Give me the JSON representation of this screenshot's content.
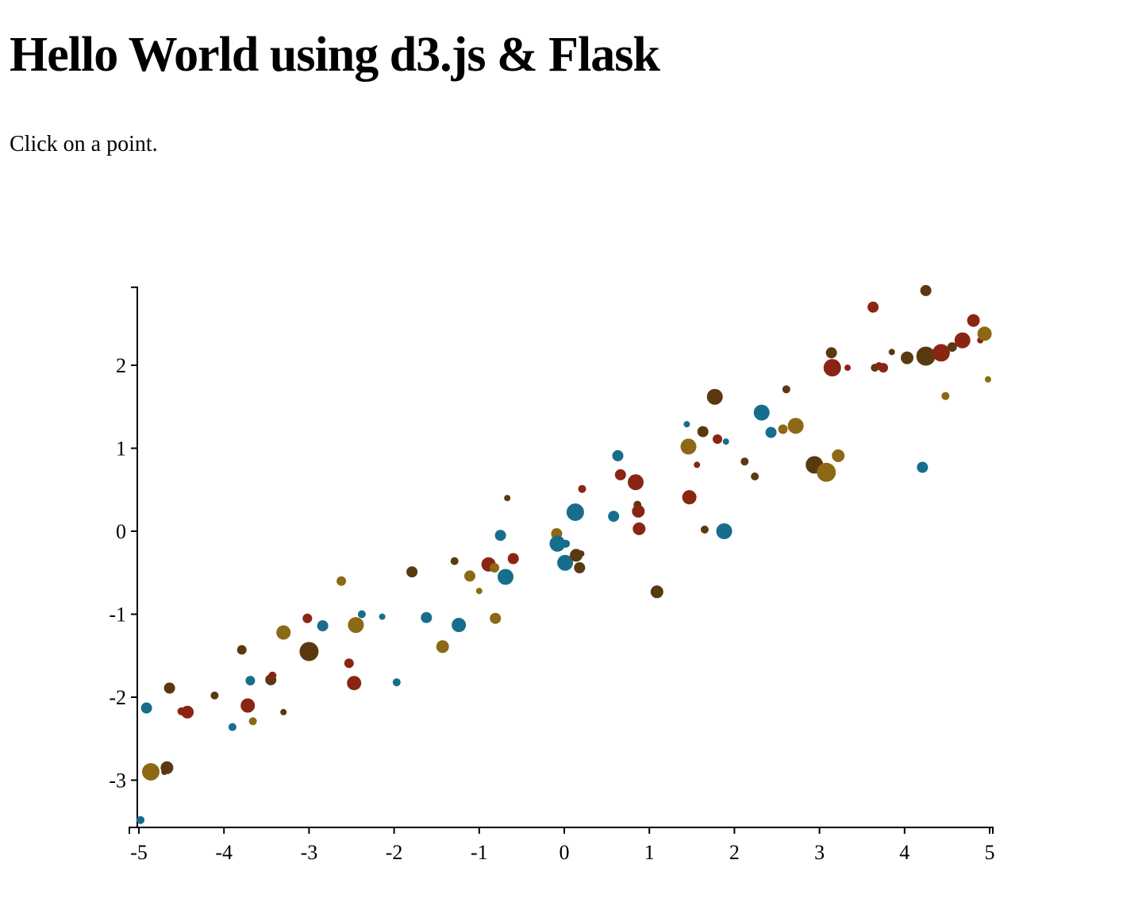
{
  "page": {
    "title": "Hello World using d3.js & Flask",
    "instruction": "Click on a point."
  },
  "colors": {
    "teal": "#176D8C",
    "red": "#8A2514",
    "gold": "#8C6914",
    "brown": "#5A3910"
  },
  "chart_data": {
    "type": "scatter",
    "title": "",
    "xlabel": "",
    "ylabel": "",
    "xlim": [
      -5,
      5
    ],
    "ylim": [
      -3.5,
      2.95
    ],
    "grid": false,
    "legend": "none",
    "xticks": [
      -5,
      -4,
      -3,
      -2,
      -1,
      0,
      1,
      2,
      3,
      4,
      5
    ],
    "yticks": [
      -3,
      -2,
      -1,
      0,
      1,
      2
    ],
    "point_encoding": {
      "x": "x value",
      "y": "y value",
      "size": "marker radius scale (relative)",
      "color": "category color key"
    },
    "points": [
      {
        "x": -4.98,
        "y": -3.48,
        "size": 5,
        "color": "teal"
      },
      {
        "x": -4.86,
        "y": -2.9,
        "size": 11,
        "color": "gold"
      },
      {
        "x": -4.67,
        "y": -2.85,
        "size": 8,
        "color": "brown"
      },
      {
        "x": -4.7,
        "y": -2.9,
        "size": 4,
        "color": "brown"
      },
      {
        "x": -4.91,
        "y": -2.13,
        "size": 7,
        "color": "teal"
      },
      {
        "x": -4.64,
        "y": -1.89,
        "size": 7,
        "color": "brown"
      },
      {
        "x": -4.5,
        "y": -2.17,
        "size": 5,
        "color": "red"
      },
      {
        "x": -4.43,
        "y": -2.18,
        "size": 8,
        "color": "red"
      },
      {
        "x": -4.11,
        "y": -1.98,
        "size": 5,
        "color": "brown"
      },
      {
        "x": -3.9,
        "y": -2.36,
        "size": 5,
        "color": "teal"
      },
      {
        "x": -3.79,
        "y": -1.43,
        "size": 6,
        "color": "brown"
      },
      {
        "x": -3.72,
        "y": -2.1,
        "size": 9,
        "color": "red"
      },
      {
        "x": -3.69,
        "y": -1.8,
        "size": 6,
        "color": "teal"
      },
      {
        "x": -3.66,
        "y": -2.29,
        "size": 5,
        "color": "gold"
      },
      {
        "x": -3.45,
        "y": -1.79,
        "size": 7,
        "color": "brown"
      },
      {
        "x": -3.43,
        "y": -1.74,
        "size": 5,
        "color": "red"
      },
      {
        "x": -3.3,
        "y": -2.18,
        "size": 4,
        "color": "brown"
      },
      {
        "x": -3.3,
        "y": -1.22,
        "size": 9,
        "color": "gold"
      },
      {
        "x": -3.0,
        "y": -1.45,
        "size": 12,
        "color": "brown"
      },
      {
        "x": -3.02,
        "y": -1.05,
        "size": 6,
        "color": "red"
      },
      {
        "x": -2.84,
        "y": -1.14,
        "size": 7,
        "color": "teal"
      },
      {
        "x": -2.62,
        "y": -0.6,
        "size": 6,
        "color": "gold"
      },
      {
        "x": -2.53,
        "y": -1.59,
        "size": 6,
        "color": "red"
      },
      {
        "x": -2.47,
        "y": -1.83,
        "size": 9,
        "color": "red"
      },
      {
        "x": -2.45,
        "y": -1.13,
        "size": 10,
        "color": "gold"
      },
      {
        "x": -2.38,
        "y": -1.0,
        "size": 5,
        "color": "teal"
      },
      {
        "x": -2.14,
        "y": -1.03,
        "size": 4,
        "color": "teal"
      },
      {
        "x": -1.97,
        "y": -1.82,
        "size": 5,
        "color": "teal"
      },
      {
        "x": -1.79,
        "y": -0.49,
        "size": 7,
        "color": "brown"
      },
      {
        "x": -1.62,
        "y": -1.04,
        "size": 7,
        "color": "teal"
      },
      {
        "x": -1.43,
        "y": -1.39,
        "size": 8,
        "color": "gold"
      },
      {
        "x": -1.29,
        "y": -0.36,
        "size": 5,
        "color": "brown"
      },
      {
        "x": -1.24,
        "y": -1.13,
        "size": 9,
        "color": "teal"
      },
      {
        "x": -1.11,
        "y": -0.54,
        "size": 7,
        "color": "gold"
      },
      {
        "x": -1.0,
        "y": -0.72,
        "size": 4,
        "color": "gold"
      },
      {
        "x": -0.89,
        "y": -0.4,
        "size": 9,
        "color": "red"
      },
      {
        "x": -0.82,
        "y": -0.44,
        "size": 6,
        "color": "gold"
      },
      {
        "x": -0.81,
        "y": -1.05,
        "size": 7,
        "color": "gold"
      },
      {
        "x": -0.75,
        "y": -0.05,
        "size": 7,
        "color": "teal"
      },
      {
        "x": -0.69,
        "y": -0.55,
        "size": 10,
        "color": "teal"
      },
      {
        "x": -0.67,
        "y": 0.4,
        "size": 4,
        "color": "brown"
      },
      {
        "x": -0.6,
        "y": -0.33,
        "size": 7,
        "color": "red"
      },
      {
        "x": -0.09,
        "y": -0.03,
        "size": 7,
        "color": "gold"
      },
      {
        "x": -0.08,
        "y": -0.15,
        "size": 10,
        "color": "teal"
      },
      {
        "x": 0.01,
        "y": -0.38,
        "size": 10,
        "color": "teal"
      },
      {
        "x": 0.02,
        "y": -0.15,
        "size": 5,
        "color": "teal"
      },
      {
        "x": 0.13,
        "y": 0.23,
        "size": 11,
        "color": "teal"
      },
      {
        "x": 0.14,
        "y": -0.29,
        "size": 8,
        "color": "brown"
      },
      {
        "x": 0.18,
        "y": -0.44,
        "size": 7,
        "color": "brown"
      },
      {
        "x": 0.2,
        "y": -0.27,
        "size": 4,
        "color": "brown"
      },
      {
        "x": 0.21,
        "y": 0.51,
        "size": 5,
        "color": "red"
      },
      {
        "x": 0.58,
        "y": 0.18,
        "size": 7,
        "color": "teal"
      },
      {
        "x": 0.63,
        "y": 0.91,
        "size": 7,
        "color": "teal"
      },
      {
        "x": 0.66,
        "y": 0.68,
        "size": 7,
        "color": "red"
      },
      {
        "x": 0.84,
        "y": 0.59,
        "size": 10,
        "color": "red"
      },
      {
        "x": 0.86,
        "y": 0.32,
        "size": 5,
        "color": "brown"
      },
      {
        "x": 0.87,
        "y": 0.24,
        "size": 8,
        "color": "red"
      },
      {
        "x": 0.88,
        "y": 0.03,
        "size": 8,
        "color": "red"
      },
      {
        "x": 1.09,
        "y": -0.73,
        "size": 8,
        "color": "brown"
      },
      {
        "x": 1.44,
        "y": 1.29,
        "size": 4,
        "color": "teal"
      },
      {
        "x": 1.46,
        "y": 1.02,
        "size": 10,
        "color": "gold"
      },
      {
        "x": 1.47,
        "y": 0.41,
        "size": 9,
        "color": "red"
      },
      {
        "x": 1.56,
        "y": 0.8,
        "size": 4,
        "color": "red"
      },
      {
        "x": 1.63,
        "y": 1.2,
        "size": 7,
        "color": "brown"
      },
      {
        "x": 1.65,
        "y": 0.02,
        "size": 5,
        "color": "brown"
      },
      {
        "x": 1.77,
        "y": 1.62,
        "size": 10,
        "color": "brown"
      },
      {
        "x": 1.8,
        "y": 1.11,
        "size": 6,
        "color": "red"
      },
      {
        "x": 1.88,
        "y": 0.0,
        "size": 10,
        "color": "teal"
      },
      {
        "x": 1.9,
        "y": 1.08,
        "size": 4,
        "color": "teal"
      },
      {
        "x": 2.12,
        "y": 0.84,
        "size": 5,
        "color": "brown"
      },
      {
        "x": 2.24,
        "y": 0.66,
        "size": 5,
        "color": "brown"
      },
      {
        "x": 2.32,
        "y": 1.43,
        "size": 10,
        "color": "teal"
      },
      {
        "x": 2.43,
        "y": 1.19,
        "size": 7,
        "color": "teal"
      },
      {
        "x": 2.57,
        "y": 1.23,
        "size": 6,
        "color": "gold"
      },
      {
        "x": 2.61,
        "y": 1.71,
        "size": 5,
        "color": "brown"
      },
      {
        "x": 2.72,
        "y": 1.27,
        "size": 10,
        "color": "gold"
      },
      {
        "x": 2.94,
        "y": 0.8,
        "size": 11,
        "color": "brown"
      },
      {
        "x": 3.08,
        "y": 0.71,
        "size": 12,
        "color": "gold"
      },
      {
        "x": 3.14,
        "y": 2.15,
        "size": 7,
        "color": "brown"
      },
      {
        "x": 3.15,
        "y": 1.97,
        "size": 11,
        "color": "red"
      },
      {
        "x": 3.22,
        "y": 0.91,
        "size": 8,
        "color": "gold"
      },
      {
        "x": 3.33,
        "y": 1.97,
        "size": 4,
        "color": "red"
      },
      {
        "x": 3.63,
        "y": 2.7,
        "size": 7,
        "color": "red"
      },
      {
        "x": 3.65,
        "y": 1.97,
        "size": 5,
        "color": "brown"
      },
      {
        "x": 3.7,
        "y": 1.99,
        "size": 5,
        "color": "red"
      },
      {
        "x": 3.75,
        "y": 1.97,
        "size": 6,
        "color": "red"
      },
      {
        "x": 3.85,
        "y": 2.16,
        "size": 4,
        "color": "brown"
      },
      {
        "x": 4.03,
        "y": 2.09,
        "size": 8,
        "color": "brown"
      },
      {
        "x": 4.21,
        "y": 0.77,
        "size": 7,
        "color": "teal"
      },
      {
        "x": 4.25,
        "y": 2.11,
        "size": 12,
        "color": "brown"
      },
      {
        "x": 4.25,
        "y": 2.9,
        "size": 7,
        "color": "brown"
      },
      {
        "x": 4.43,
        "y": 2.15,
        "size": 11,
        "color": "red"
      },
      {
        "x": 4.48,
        "y": 1.63,
        "size": 5,
        "color": "gold"
      },
      {
        "x": 4.56,
        "y": 2.22,
        "size": 6,
        "color": "brown"
      },
      {
        "x": 4.68,
        "y": 2.3,
        "size": 10,
        "color": "red"
      },
      {
        "x": 4.81,
        "y": 2.54,
        "size": 8,
        "color": "red"
      },
      {
        "x": 4.89,
        "y": 2.3,
        "size": 4,
        "color": "red"
      },
      {
        "x": 4.94,
        "y": 2.38,
        "size": 9,
        "color": "gold"
      },
      {
        "x": 4.98,
        "y": 1.83,
        "size": 4,
        "color": "gold"
      }
    ]
  }
}
